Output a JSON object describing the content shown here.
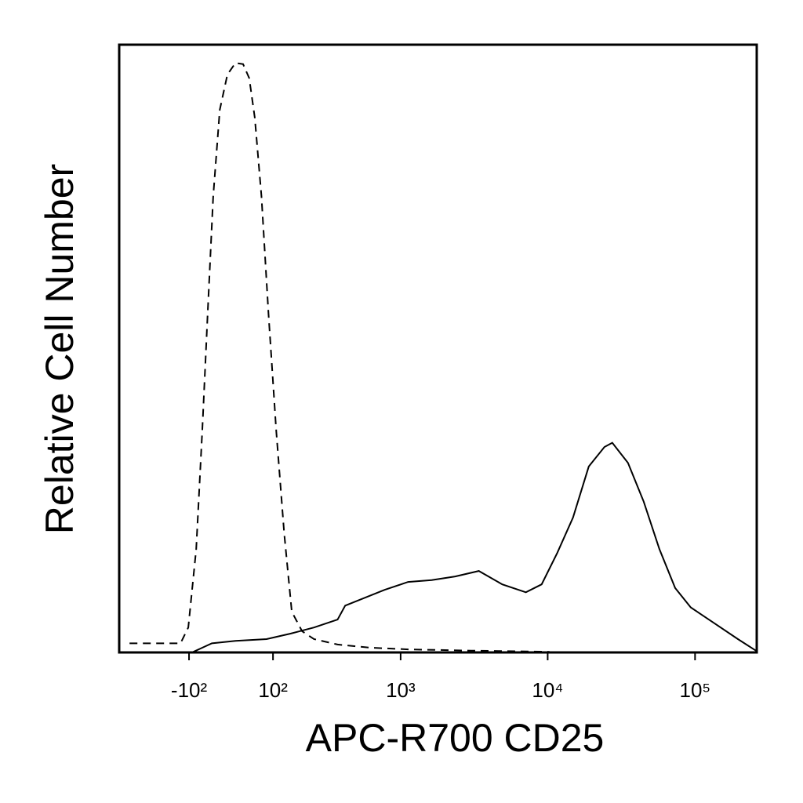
{
  "chart_data": {
    "type": "line",
    "xlabel": "APC-R700 CD25",
    "ylabel": "Relative Cell Number",
    "xscale": "biexponential",
    "xlim": [
      -395,
      262144
    ],
    "ylim": [
      0,
      100
    ],
    "xticks": [
      {
        "value": -100,
        "label": "-10²"
      },
      {
        "value": 100,
        "label": "10²"
      },
      {
        "value": 1000,
        "label": "10³"
      },
      {
        "value": 10000,
        "label": "10⁴"
      },
      {
        "value": 100000,
        "label": "10⁵"
      }
    ],
    "series": [
      {
        "color": "#000000",
        "dash": "dashed",
        "x": [
          -332,
          -124,
          -102,
          -81,
          -66,
          -53,
          -40,
          -25,
          -8,
          10,
          27,
          41,
          54,
          70,
          88,
          109,
          132,
          156,
          192,
          240,
          362,
          604,
          1125,
          3010,
          10300
        ],
        "values": [
          1.5,
          1.5,
          4.1,
          17,
          36.4,
          55.7,
          75.1,
          89.3,
          95.1,
          97,
          96.8,
          94.5,
          88,
          75.1,
          55.7,
          36.4,
          19.6,
          6.7,
          3.5,
          2.2,
          1.3,
          0.8,
          0.5,
          0.3,
          0.1
        ]
      },
      {
        "color": "#000000",
        "dash": "solid",
        "x": [
          -92,
          -43,
          10,
          83,
          152,
          240,
          362,
          411,
          775,
          1125,
          1629,
          2357,
          3407,
          4920,
          7110,
          9100,
          11630,
          14860,
          19000,
          24270,
          27430,
          35070,
          44830,
          57300,
          73270,
          93580,
          135200,
          195400,
          258700
        ],
        "values": [
          0,
          1.5,
          1.9,
          2.2,
          3.1,
          4.1,
          5.4,
          7.7,
          10.3,
          11.6,
          11.9,
          12.5,
          13.4,
          11.2,
          9.9,
          11.2,
          16.4,
          22.2,
          30.6,
          33.8,
          34.5,
          31.2,
          24.8,
          17,
          10.6,
          7.4,
          4.8,
          2.2,
          0.3
        ]
      }
    ]
  }
}
